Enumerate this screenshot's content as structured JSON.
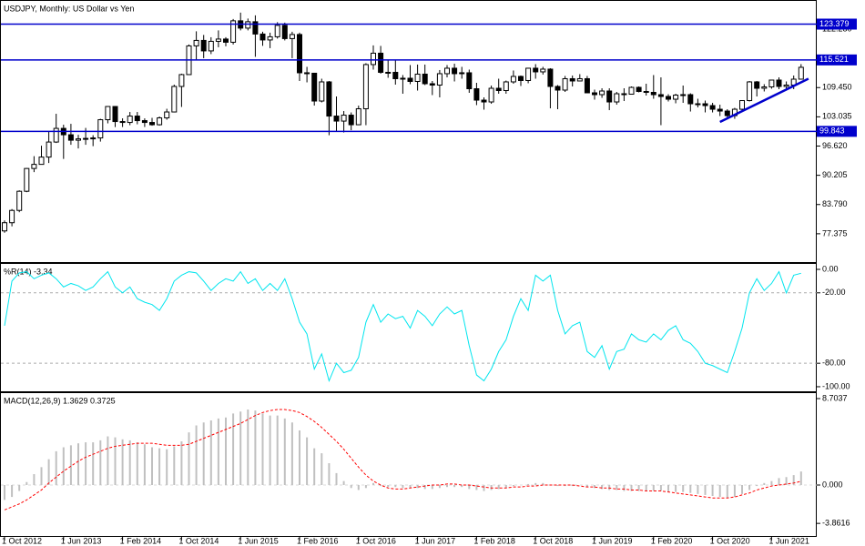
{
  "chart_data": [
    {
      "type": "candlestick",
      "title": "USDJPY, Monthly:  US Dollar vs Yen",
      "categories": [
        "1 Oct 2012",
        null,
        null,
        null,
        null,
        null,
        null,
        null,
        "1 Jun 2013",
        null,
        null,
        null,
        null,
        null,
        null,
        null,
        "1 Feb 2014",
        null,
        null,
        null,
        null,
        null,
        null,
        null,
        "1 Oct 2014",
        null,
        null,
        null,
        null,
        null,
        null,
        null,
        "1 Jun 2015",
        null,
        null,
        null,
        null,
        null,
        null,
        null,
        "1 Feb 2016",
        null,
        null,
        null,
        null,
        null,
        null,
        null,
        "1 Oct 2016",
        null,
        null,
        null,
        null,
        null,
        null,
        null,
        "1 Jun 2017",
        null,
        null,
        null,
        null,
        null,
        null,
        null,
        "1 Feb 2018",
        null,
        null,
        null,
        null,
        null,
        null,
        null,
        "1 Oct 2018",
        null,
        null,
        null,
        null,
        null,
        null,
        null,
        "1 Jun 2019",
        null,
        null,
        null,
        null,
        null,
        null,
        null,
        "1 Feb 2020",
        null,
        null,
        null,
        null,
        null,
        null,
        null,
        "1 Oct 2020",
        null,
        null,
        null,
        null,
        null,
        null,
        null,
        "1 Jun 2021",
        null,
        null,
        null,
        null
      ],
      "open": [
        78.0,
        79.8,
        82.5,
        86.7,
        91.7,
        92.6,
        94.2,
        97.5,
        100.5,
        99.1,
        97.9,
        98.2,
        98.3,
        98.4,
        102.4,
        105.3,
        102.0,
        101.8,
        103.2,
        102.2,
        101.8,
        101.3,
        102.8,
        104.1,
        109.7,
        112.3,
        118.6,
        119.8,
        117.5,
        119.6,
        120.1,
        119.4,
        124.1,
        122.5,
        123.9,
        121.2,
        119.9,
        120.6,
        123.1,
        120.2,
        121.1,
        112.7,
        112.6,
        106.5,
        110.7,
        103.2,
        102.1,
        103.4,
        101.3,
        104.8,
        114.5,
        117.0,
        112.8,
        112.8,
        111.4,
        111.5,
        110.8,
        112.4,
        110.3,
        110.0,
        112.5,
        113.7,
        112.5,
        112.7,
        109.2,
        106.7,
        106.3,
        109.3,
        108.8,
        110.7,
        111.9,
        111.0,
        113.7,
        112.9,
        113.5,
        109.7,
        108.9,
        111.4,
        110.9,
        111.4,
        108.3,
        107.9,
        108.7,
        106.3,
        108.1,
        108.0,
        109.5,
        108.6,
        108.4,
        107.9,
        107.5,
        106.9,
        107.8,
        107.9,
        105.9,
        105.9,
        105.5,
        104.7,
        104.3,
        103.3,
        104.7,
        106.6,
        110.7,
        109.3,
        109.6,
        111.1,
        109.7,
        110.0,
        111.3
      ],
      "high": [
        80.3,
        82.8,
        86.9,
        91.8,
        94.4,
        96.7,
        99.9,
        103.7,
        101.3,
        101.5,
        99.1,
        100.6,
        99.0,
        102.6,
        105.4,
        105.4,
        102.7,
        104.1,
        104.1,
        102.7,
        102.8,
        103.1,
        104.8,
        110.1,
        112.5,
        118.9,
        121.8,
        121.0,
        120.5,
        122.0,
        120.5,
        124.5,
        125.9,
        124.6,
        125.3,
        121.7,
        121.5,
        123.8,
        123.7,
        121.7,
        121.5,
        114.0,
        112.7,
        111.4,
        110.9,
        107.5,
        104.3,
        104.0,
        105.5,
        114.8,
        118.7,
        118.6,
        115.5,
        115.5,
        112.2,
        114.4,
        114.5,
        114.5,
        110.9,
        113.3,
        114.4,
        114.7,
        114.0,
        113.4,
        110.5,
        107.3,
        109.9,
        111.4,
        111.0,
        113.2,
        112.1,
        113.8,
        114.6,
        114.0,
        113.7,
        110.0,
        112.0,
        112.1,
        112.4,
        112.0,
        109.0,
        109.3,
        109.3,
        108.5,
        109.3,
        109.7,
        109.7,
        110.3,
        112.2,
        111.7,
        108.0,
        108.1,
        109.9,
        108.2,
        107.0,
        106.6,
        106.1,
        105.7,
        104.7,
        105.0,
        106.7,
        110.9,
        110.9,
        110.2,
        111.1,
        111.7,
        110.8,
        112.1,
        114.6
      ],
      "low": [
        77.6,
        79.0,
        82.1,
        86.5,
        90.9,
        92.6,
        92.9,
        97.3,
        93.8,
        96.9,
        96.1,
        96.9,
        96.6,
        97.6,
        101.6,
        100.8,
        100.8,
        101.2,
        101.4,
        100.8,
        101.1,
        101.1,
        102.4,
        104.0,
        105.2,
        112.3,
        115.6,
        115.9,
        116.8,
        118.3,
        118.5,
        118.9,
        122.0,
        122.0,
        116.2,
        118.6,
        118.1,
        120.2,
        119.8,
        115.9,
        110.9,
        110.6,
        105.5,
        106.2,
        99.0,
        99.9,
        99.6,
        100.1,
        101.2,
        101.2,
        113.4,
        112.5,
        111.6,
        110.1,
        108.1,
        110.2,
        108.8,
        110.0,
        107.8,
        107.3,
        111.7,
        110.8,
        111.4,
        108.3,
        105.6,
        104.6,
        105.9,
        108.1,
        108.1,
        110.3,
        109.8,
        110.4,
        111.4,
        112.3,
        104.9,
        104.7,
        108.5,
        109.7,
        110.8,
        108.3,
        106.8,
        107.2,
        104.5,
        105.7,
        106.5,
        107.9,
        108.4,
        107.7,
        107.0,
        101.2,
        106.4,
        106.0,
        106.1,
        104.2,
        105.1,
        104.0,
        104.0,
        103.2,
        102.9,
        102.6,
        104.4,
        106.4,
        107.5,
        108.6,
        109.2,
        109.1,
        109.1,
        109.1,
        111.2
      ],
      "close": [
        79.8,
        82.5,
        86.7,
        91.7,
        92.6,
        94.2,
        97.5,
        100.5,
        99.1,
        97.9,
        98.2,
        98.3,
        98.4,
        102.4,
        105.3,
        102.0,
        101.8,
        103.2,
        102.2,
        101.8,
        101.3,
        102.8,
        104.1,
        109.7,
        112.3,
        118.6,
        119.8,
        117.5,
        119.6,
        120.1,
        119.4,
        124.1,
        122.5,
        123.9,
        121.2,
        119.9,
        120.6,
        123.1,
        120.2,
        121.1,
        112.7,
        112.6,
        106.5,
        110.7,
        103.2,
        102.1,
        103.4,
        101.3,
        104.8,
        114.5,
        117.0,
        112.8,
        112.8,
        111.4,
        111.5,
        110.8,
        112.4,
        110.3,
        110.0,
        112.5,
        113.7,
        112.5,
        112.7,
        109.2,
        106.7,
        106.3,
        109.3,
        108.8,
        110.7,
        111.9,
        111.0,
        113.7,
        112.9,
        113.5,
        109.7,
        108.9,
        111.4,
        110.9,
        111.4,
        108.3,
        107.9,
        108.7,
        106.3,
        108.1,
        108.0,
        109.5,
        108.6,
        108.4,
        107.9,
        107.5,
        106.9,
        107.8,
        107.9,
        105.9,
        105.9,
        105.5,
        104.7,
        104.3,
        103.3,
        104.7,
        106.6,
        110.7,
        109.3,
        109.6,
        111.1,
        109.7,
        110.0,
        111.3,
        113.9
      ],
      "ylim": [
        71.16,
        128.47
      ],
      "yticks": [
        {
          "value": 122.28,
          "label": "122.280"
        },
        {
          "value": 109.45,
          "label": "109.450"
        },
        103.035,
        {
          "value": 96.62,
          "label": "96.620"
        },
        90.205,
        {
          "value": 83.79,
          "label": "83.790"
        },
        77.375
      ],
      "levels": [
        123.379,
        115.521,
        99.843
      ],
      "level_color": "#0000cc",
      "trendline": {
        "start": 101.9,
        "end": 111.4
      },
      "up_color": "#ffffff",
      "down_color": "#000000"
    },
    {
      "type": "line",
      "title": "%R(14) -3.34",
      "values": [
        -48,
        -10,
        -3,
        -2,
        -8,
        -5,
        -3,
        -8,
        -15,
        -12,
        -14,
        -18,
        -15,
        -8,
        -2,
        -15,
        -20,
        -15,
        -25,
        -28,
        -30,
        -35,
        -25,
        -10,
        -5,
        -2,
        -3,
        -10,
        -18,
        -12,
        -8,
        -10,
        -2,
        -12,
        -8,
        -18,
        -12,
        -18,
        -8,
        -25,
        -45,
        -55,
        -85,
        -72,
        -95,
        -80,
        -88,
        -86,
        -75,
        -45,
        -30,
        -45,
        -38,
        -42,
        -40,
        -50,
        -35,
        -40,
        -48,
        -38,
        -32,
        -38,
        -35,
        -65,
        -90,
        -95,
        -85,
        -70,
        -60,
        -40,
        -25,
        -35,
        -5,
        -10,
        -5,
        -35,
        -55,
        -48,
        -45,
        -70,
        -75,
        -65,
        -85,
        -70,
        -68,
        -55,
        -60,
        -62,
        -55,
        -60,
        -52,
        -48,
        -60,
        -63,
        -70,
        -80,
        -82,
        -85,
        -88,
        -70,
        -50,
        -20,
        -8,
        -18,
        -12,
        -2,
        -20,
        -5,
        -3.34
      ],
      "color": "#00e5ee",
      "ylim": [
        -103.9,
        4.65
      ],
      "yticks": [
        {
          "value": 0,
          "label": "0.00"
        },
        {
          "value": -20,
          "label": "-20.00"
        },
        {
          "value": -80,
          "label": "-80.00"
        },
        {
          "value": -100,
          "label": "-100.00"
        }
      ]
    },
    {
      "type": "macd",
      "title": "MACD(12,26,9) 1.3629 0.3725",
      "values": [
        -1.5,
        -1.2,
        -0.6,
        0.3,
        1.1,
        1.8,
        2.6,
        3.4,
        3.8,
        4.0,
        4.2,
        4.3,
        4.3,
        4.5,
        4.9,
        4.8,
        4.6,
        4.5,
        4.3,
        4.1,
        3.8,
        3.7,
        3.6,
        3.9,
        4.4,
        5.3,
        6.0,
        6.3,
        6.5,
        6.7,
        6.8,
        7.2,
        7.4,
        7.6,
        7.5,
        7.2,
        7.0,
        7.0,
        6.7,
        6.3,
        5.5,
        4.8,
        3.7,
        3.2,
        2.2,
        1.2,
        0.4,
        -0.3,
        -0.5,
        -0.3,
        0.2,
        -0.1,
        -0.2,
        -0.2,
        -0.3,
        -0.3,
        -0.3,
        -0.4,
        -0.4,
        -0.3,
        -0.2,
        -0.2,
        -0.2,
        -0.4,
        -0.5,
        -0.6,
        -0.5,
        -0.4,
        -0.3,
        -0.1,
        0.0,
        0.1,
        0.2,
        0.2,
        0.0,
        -0.1,
        -0.1,
        -0.1,
        0.0,
        -0.2,
        -0.3,
        -0.4,
        -0.5,
        -0.5,
        -0.6,
        -0.6,
        -0.6,
        -0.6,
        -0.6,
        -0.6,
        -0.7,
        -0.7,
        -0.7,
        -0.8,
        -0.9,
        -1.0,
        -1.1,
        -1.2,
        -1.3,
        -1.2,
        -0.9,
        -0.5,
        -0.1,
        0.2,
        0.4,
        0.7,
        0.8,
        1.0,
        1.3629
      ],
      "signal": [
        -2.5,
        -2.2,
        -1.9,
        -1.5,
        -1.0,
        -0.5,
        0.2,
        0.8,
        1.4,
        1.9,
        2.4,
        2.8,
        3.1,
        3.4,
        3.7,
        3.9,
        4.0,
        4.1,
        4.2,
        4.2,
        4.2,
        4.1,
        4.0,
        4.0,
        4.0,
        4.1,
        4.4,
        4.7,
        5.0,
        5.3,
        5.6,
        5.9,
        6.2,
        6.6,
        7.0,
        7.3,
        7.5,
        7.6,
        7.6,
        7.5,
        7.3,
        6.9,
        6.4,
        5.8,
        5.1,
        4.4,
        3.6,
        2.7,
        1.8,
        1.0,
        0.4,
        0.0,
        -0.3,
        -0.4,
        -0.4,
        -0.3,
        -0.2,
        -0.1,
        0.0,
        0.0,
        0.1,
        0.1,
        0.0,
        0.0,
        -0.1,
        -0.2,
        -0.3,
        -0.3,
        -0.3,
        -0.2,
        -0.2,
        -0.1,
        -0.1,
        0.0,
        0.0,
        0.0,
        0.0,
        0.0,
        -0.1,
        -0.2,
        -0.2,
        -0.3,
        -0.3,
        -0.4,
        -0.4,
        -0.5,
        -0.5,
        -0.6,
        -0.6,
        -0.6,
        -0.7,
        -0.8,
        -0.9,
        -1.0,
        -1.1,
        -1.2,
        -1.3,
        -1.3,
        -1.3,
        -1.2,
        -1.0,
        -0.8,
        -0.5,
        -0.3,
        -0.1,
        0.0,
        0.1,
        0.2,
        0.3725
      ],
      "color": "#c0c0c0",
      "signal_color": "#ff0000",
      "ylim": [
        -5.222,
        9.253
      ],
      "yticks": [
        8.7037,
        {
          "value": 0,
          "label": "0.000"
        },
        -3.8616
      ]
    }
  ]
}
